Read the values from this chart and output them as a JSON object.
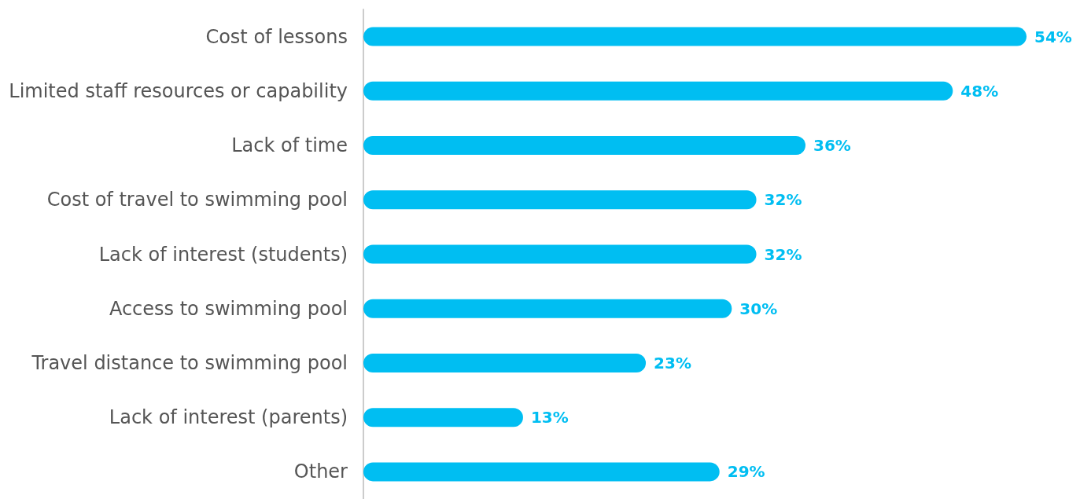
{
  "chart_data": {
    "type": "bar",
    "categories": [
      "Cost of lessons",
      "Limited staff resources or capability",
      "Lack of time",
      "Cost of travel to swimming pool",
      "Lack of interest (students)",
      "Access to swimming pool",
      "Travel distance to swimming pool",
      "Lack of interest (parents)",
      "Other"
    ],
    "series": [
      {
        "color": "#00bef2",
        "values": [
          54,
          48,
          36,
          32,
          32,
          30,
          23,
          13,
          29
        ],
        "value_labels": [
          "54%",
          "48%",
          "36%",
          "32%",
          "32%",
          "30%",
          "23%",
          "13%",
          "29%"
        ]
      }
    ],
    "orientation": "horizontal"
  }
}
